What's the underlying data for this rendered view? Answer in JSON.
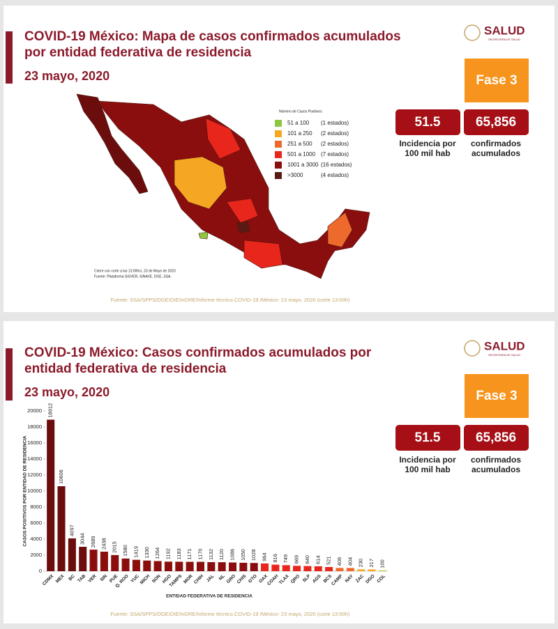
{
  "logo": {
    "name": "SALUD",
    "subtitle": "SECRETARÍA DE SALUD"
  },
  "slide1": {
    "title_lines": [
      "COVID-19 México: Mapa de casos confirmados acumulados",
      "por entidad federativa de residencia"
    ],
    "date": "23 mayo, 2020",
    "phase": "Fase 3",
    "stats": [
      {
        "value": "51.5",
        "label_lines": [
          "Incidencia por",
          "100 mil hab"
        ]
      },
      {
        "value": "65,856",
        "label_lines": [
          "confirmados",
          "acumulados"
        ]
      }
    ],
    "legend": {
      "title": "Número de Casos Positivos",
      "items": [
        {
          "range": "51 a 100",
          "count": "(1 estados)",
          "color": "#8dc63f"
        },
        {
          "range": "101 a 250",
          "count": "(2 estados)",
          "color": "#f5a623"
        },
        {
          "range": "251 a 500",
          "count": "(2 estados)",
          "color": "#ee6a2c"
        },
        {
          "range": "501 a 1000",
          "count": "(7 estados)",
          "color": "#e8261b"
        },
        {
          "range": "1001 a 3000",
          "count": "(16 estados)",
          "color": "#8b0e0e"
        },
        {
          "range": ">3000",
          "count": "(4 estados)",
          "color": "#5a1a14"
        }
      ]
    },
    "notes": [
      "Cierre con corte a las 13:00hrs, 23 de Mayo de 2020",
      "Fuente: Plataforma SISVER, SINAVE, DGE, SSA."
    ],
    "source": "Fuente: SSA/SPPS/DGE/DIE/InDRE/Informe técnico.COVID-19 /México- 23 mayo, 2020 (corte 13:00h)"
  },
  "slide2": {
    "title_lines": [
      "COVID-19 México: Casos confirmados acumulados por",
      "entidad federativa de residencia"
    ],
    "date": "23 mayo, 2020",
    "phase": "Fase 3",
    "stats": [
      {
        "value": "51.5",
        "label_lines": [
          "Incidencia por",
          "100 mil hab"
        ]
      },
      {
        "value": "65,856",
        "label_lines": [
          "confirmados",
          "acumulados"
        ]
      }
    ],
    "source": "Fuente: SSA/SPPS/DGE/DIE/InDRE/Informe técnico.COVID-19 /México- 23 mayo, 2020 (corte 13:00h)"
  },
  "chart_data": {
    "type": "bar",
    "x_label": "ENTIDAD FEDERATIVA DE RESIDENCIA",
    "y_label": "CASOS POSITIVOS POR ENTIDAD DE RESIDENCIA",
    "categories": [
      "CDMX",
      "MEX",
      "BC",
      "TAB",
      "VER",
      "SIN",
      "PUE",
      "Q. ROO",
      "YUC",
      "MICH",
      "SON",
      "HGO",
      "TAMPS",
      "MOR",
      "CHIH",
      "JAL",
      "NL",
      "GRO",
      "CHIS",
      "GTO",
      "OAX",
      "COAH",
      "TLAX",
      "QRO",
      "SLP",
      "AGS",
      "BCS",
      "CAMP",
      "NAY",
      "ZAC",
      "DGO",
      "COL"
    ],
    "values": [
      18912,
      10606,
      4097,
      3044,
      2689,
      2438,
      2015,
      1580,
      1419,
      1330,
      1264,
      1192,
      1183,
      1171,
      1170,
      1132,
      1120,
      1086,
      1050,
      1028,
      964,
      816,
      749,
      669,
      640,
      614,
      521,
      406,
      404,
      230,
      217,
      100
    ],
    "colors": [
      "#6b0d0d",
      "#6b0d0d",
      "#6b0d0d",
      "#6b0d0d",
      "#8b0e0e",
      "#8b0e0e",
      "#8b0e0e",
      "#8b0e0e",
      "#8b0e0e",
      "#8b0e0e",
      "#8b0e0e",
      "#8b0e0e",
      "#8b0e0e",
      "#8b0e0e",
      "#8b0e0e",
      "#8b0e0e",
      "#8b0e0e",
      "#8b0e0e",
      "#8b0e0e",
      "#8b0e0e",
      "#e8261b",
      "#e8261b",
      "#e8261b",
      "#e8261b",
      "#e8261b",
      "#e8261b",
      "#e8261b",
      "#ee6a2c",
      "#ee6a2c",
      "#f5a623",
      "#f5a623",
      "#c9c22a"
    ],
    "ylim": [
      0,
      20000
    ],
    "yticks": [
      0,
      2000,
      4000,
      6000,
      8000,
      10000,
      12000,
      14000,
      16000,
      18000,
      20000
    ]
  }
}
